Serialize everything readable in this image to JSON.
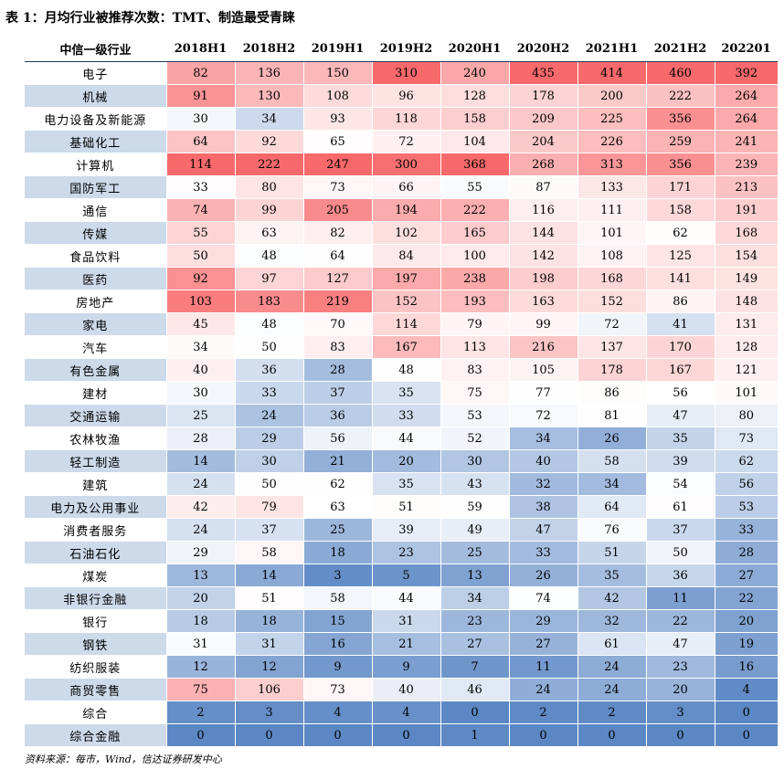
{
  "title": "表 1：月均行业被推荐次数：TMT、制造最受青睐",
  "source": "资料来源：每市，Wind，信达证券研发中心",
  "table": {
    "header_label": "中信一级行业",
    "columns": [
      "2018H1",
      "2018H2",
      "2019H1",
      "2019H2",
      "2020H1",
      "2020H2",
      "2021H1",
      "2021H2",
      "202201"
    ],
    "rows": [
      {
        "name": "电子",
        "values": [
          82,
          136,
          150,
          310,
          240,
          435,
          414,
          460,
          392
        ]
      },
      {
        "name": "机械",
        "values": [
          91,
          130,
          108,
          96,
          128,
          178,
          200,
          222,
          264
        ]
      },
      {
        "name": "电力设备及新能源",
        "values": [
          30,
          34,
          93,
          118,
          158,
          209,
          225,
          356,
          264
        ]
      },
      {
        "name": "基础化工",
        "values": [
          64,
          92,
          65,
          72,
          104,
          204,
          226,
          259,
          241
        ]
      },
      {
        "name": "计算机",
        "values": [
          114,
          222,
          247,
          300,
          368,
          268,
          313,
          356,
          239
        ]
      },
      {
        "name": "国防军工",
        "values": [
          33,
          80,
          73,
          66,
          55,
          87,
          133,
          171,
          213
        ]
      },
      {
        "name": "通信",
        "values": [
          74,
          99,
          205,
          194,
          222,
          116,
          111,
          158,
          191
        ]
      },
      {
        "name": "传媒",
        "values": [
          55,
          63,
          82,
          102,
          165,
          144,
          101,
          62,
          168
        ]
      },
      {
        "name": "食品饮料",
        "values": [
          50,
          48,
          64,
          84,
          100,
          142,
          108,
          125,
          154
        ]
      },
      {
        "name": "医药",
        "values": [
          92,
          97,
          127,
          197,
          238,
          198,
          168,
          141,
          149
        ]
      },
      {
        "name": "房地产",
        "values": [
          103,
          183,
          219,
          152,
          193,
          163,
          152,
          86,
          148
        ]
      },
      {
        "name": "家电",
        "values": [
          45,
          48,
          70,
          114,
          79,
          99,
          72,
          41,
          131
        ]
      },
      {
        "name": "汽车",
        "values": [
          34,
          50,
          83,
          167,
          113,
          216,
          137,
          170,
          128
        ]
      },
      {
        "name": "有色金属",
        "values": [
          40,
          36,
          28,
          48,
          83,
          105,
          178,
          167,
          121
        ]
      },
      {
        "name": "建材",
        "values": [
          30,
          33,
          37,
          35,
          75,
          77,
          86,
          56,
          101
        ]
      },
      {
        "name": "交通运输",
        "values": [
          25,
          24,
          36,
          33,
          53,
          72,
          81,
          47,
          80
        ]
      },
      {
        "name": "农林牧渔",
        "values": [
          28,
          29,
          56,
          44,
          52,
          34,
          26,
          35,
          73
        ]
      },
      {
        "name": "轻工制造",
        "values": [
          14,
          30,
          21,
          20,
          30,
          40,
          58,
          39,
          62
        ]
      },
      {
        "name": "建筑",
        "values": [
          24,
          50,
          62,
          35,
          43,
          32,
          34,
          54,
          56
        ]
      },
      {
        "name": "电力及公用事业",
        "values": [
          42,
          79,
          63,
          51,
          59,
          38,
          64,
          61,
          53
        ]
      },
      {
        "name": "消费者服务",
        "values": [
          24,
          37,
          25,
          39,
          49,
          47,
          76,
          37,
          33
        ]
      },
      {
        "name": "石油石化",
        "values": [
          29,
          58,
          18,
          23,
          25,
          33,
          51,
          50,
          28
        ]
      },
      {
        "name": "煤炭",
        "values": [
          13,
          14,
          3,
          5,
          13,
          26,
          35,
          36,
          27
        ]
      },
      {
        "name": "非银行金融",
        "values": [
          20,
          51,
          58,
          44,
          34,
          74,
          42,
          11,
          22
        ]
      },
      {
        "name": "银行",
        "values": [
          18,
          18,
          15,
          31,
          23,
          29,
          32,
          22,
          20
        ]
      },
      {
        "name": "钢铁",
        "values": [
          31,
          31,
          16,
          21,
          27,
          27,
          61,
          47,
          19
        ]
      },
      {
        "name": "纺织服装",
        "values": [
          12,
          12,
          9,
          9,
          7,
          11,
          24,
          23,
          16
        ]
      },
      {
        "name": "商贸零售",
        "values": [
          75,
          106,
          73,
          40,
          46,
          24,
          24,
          20,
          4
        ]
      },
      {
        "name": "综合",
        "values": [
          2,
          3,
          4,
          4,
          0,
          2,
          2,
          3,
          0
        ]
      },
      {
        "name": "综合金融",
        "values": [
          0,
          0,
          0,
          0,
          1,
          0,
          0,
          0,
          0
        ]
      }
    ]
  },
  "colors": {
    "header_bg": "#ffffff",
    "industry_even_bg": "#ccdaea",
    "industry_odd_bg": "#ffffff",
    "scale_low": "#5b87c4",
    "scale_mid": "#ffffff",
    "scale_high": "#f8696b"
  }
}
